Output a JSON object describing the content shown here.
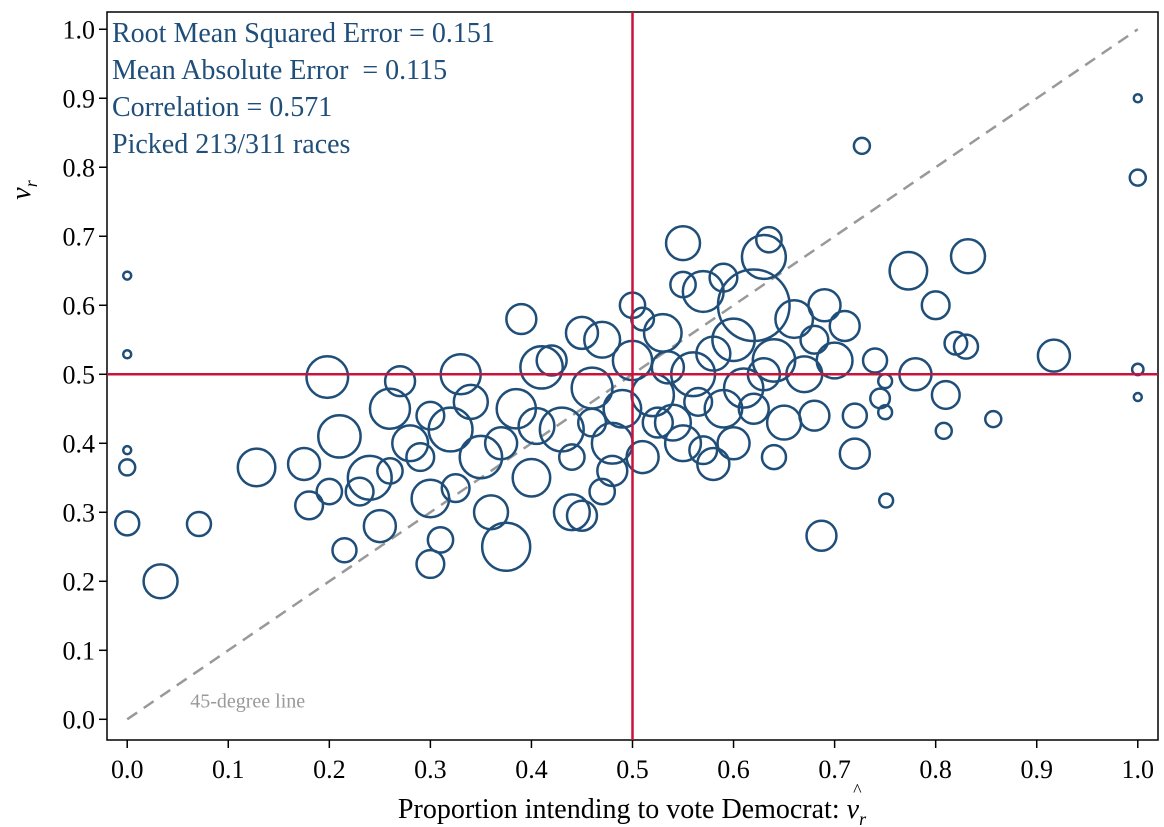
{
  "chart_data": {
    "type": "scatter",
    "annotations": [
      "Root Mean Squared Error = 0.151",
      "Mean Absolute Error  = 0.115",
      "Correlation = 0.571",
      "Picked 213/311 races"
    ],
    "xlabel": "Proportion intending to vote Democrat: ",
    "xlabel_symbol": "v",
    "xlabel_accent": "^",
    "xlabel_subscript": "r",
    "ylabel_symbol": "v",
    "ylabel_subscript": "r",
    "xlim": [
      -0.02,
      1.02
    ],
    "ylim": [
      -0.03,
      1.025
    ],
    "xticks": [
      {
        "value": 0,
        "label": "0.0"
      },
      0.1,
      0.2,
      0.3,
      0.4,
      0.5,
      0.6,
      0.7,
      0.8,
      0.9,
      {
        "value": 1,
        "label": "1.0"
      }
    ],
    "yticks": [
      {
        "value": 0,
        "label": "0.0"
      },
      0.1,
      0.2,
      0.3,
      0.4,
      0.5,
      0.6,
      0.7,
      0.8,
      0.9,
      {
        "value": 1,
        "label": "1.0"
      }
    ],
    "color": "#1f4e79",
    "hline": 0.5,
    "vline": 0.5,
    "ref_color": "#c8143c",
    "diagonal": {
      "x": [
        0,
        1
      ],
      "y": [
        0,
        1
      ],
      "label": "45-degree line",
      "color": "#999999"
    },
    "x": [
      0,
      0,
      0,
      0,
      0,
      0.071,
      0.033,
      1,
      1,
      1,
      1,
      0.727,
      0.917,
      0.857,
      0.751,
      0.687,
      0.808,
      0.75,
      0.75,
      0.832,
      0.773,
      0.8,
      0.82,
      0.83,
      0.81,
      0.78,
      0.72,
      0.745,
      0.74,
      0.128,
      0.198,
      0.175,
      0.18,
      0.215,
      0.21,
      0.24,
      0.25,
      0.26,
      0.28,
      0.3,
      0.3,
      0.31,
      0.32,
      0.33,
      0.35,
      0.36,
      0.375,
      0.385,
      0.39,
      0.4,
      0.41,
      0.43,
      0.44,
      0.45,
      0.46,
      0.47,
      0.48,
      0.49,
      0.5,
      0.5,
      0.51,
      0.52,
      0.53,
      0.54,
      0.55,
      0.56,
      0.57,
      0.58,
      0.59,
      0.6,
      0.61,
      0.62,
      0.63,
      0.635,
      0.64,
      0.65,
      0.66,
      0.67,
      0.68,
      0.69,
      0.7,
      0.71,
      0.72,
      0.6,
      0.55,
      0.45,
      0.42,
      0.29,
      0.27,
      0.34,
      0.37,
      0.23,
      0.2,
      0.325,
      0.405,
      0.48,
      0.525,
      0.58,
      0.535,
      0.565,
      0.62,
      0.64,
      0.68,
      0.44,
      0.51,
      0.59,
      0.55,
      0.46,
      0.3,
      0.26,
      0.47,
      0.57,
      0.63
    ],
    "y": [
      0.643,
      0.529,
      0.39,
      0.365,
      0.284,
      0.283,
      0.2,
      0.9,
      0.785,
      0.507,
      0.467,
      0.831,
      0.527,
      0.435,
      0.317,
      0.266,
      0.418,
      0.445,
      0.49,
      0.671,
      0.65,
      0.6,
      0.545,
      0.54,
      0.47,
      0.5,
      0.385,
      0.465,
      0.52,
      0.365,
      0.496,
      0.37,
      0.31,
      0.245,
      0.41,
      0.35,
      0.28,
      0.45,
      0.4,
      0.225,
      0.32,
      0.26,
      0.42,
      0.5,
      0.38,
      0.3,
      0.25,
      0.45,
      0.58,
      0.35,
      0.51,
      0.42,
      0.3,
      0.295,
      0.48,
      0.55,
      0.4,
      0.45,
      0.6,
      0.52,
      0.38,
      0.47,
      0.56,
      0.43,
      0.69,
      0.5,
      0.62,
      0.37,
      0.45,
      0.55,
      0.48,
      0.6,
      0.67,
      0.695,
      0.52,
      0.43,
      0.58,
      0.5,
      0.44,
      0.6,
      0.52,
      0.57,
      0.44,
      0.4,
      0.4,
      0.56,
      0.52,
      0.38,
      0.49,
      0.46,
      0.4,
      0.33,
      0.33,
      0.335,
      0.425,
      0.36,
      0.43,
      0.53,
      0.51,
      0.46,
      0.45,
      0.38,
      0.55,
      0.38,
      0.58,
      0.64,
      0.63,
      0.43,
      0.44,
      0.36,
      0.33,
      0.39,
      0.5
    ],
    "sizes": [
      1,
      1,
      1,
      4,
      9,
      9,
      18,
      1,
      4,
      2,
      1,
      4,
      16,
      4,
      3,
      14,
      4,
      3,
      3,
      18,
      22,
      12,
      8,
      9,
      12,
      16,
      14,
      6,
      9,
      22,
      27,
      16,
      12,
      9,
      28,
      30,
      16,
      25,
      20,
      12,
      22,
      10,
      30,
      25,
      28,
      18,
      36,
      24,
      14,
      22,
      28,
      30,
      20,
      14,
      26,
      20,
      26,
      22,
      10,
      24,
      16,
      28,
      22,
      20,
      18,
      30,
      26,
      16,
      22,
      28,
      24,
      80,
      30,
      10,
      28,
      18,
      22,
      20,
      14,
      16,
      20,
      14,
      9,
      16,
      20,
      16,
      14,
      12,
      14,
      18,
      16,
      12,
      10,
      12,
      20,
      14,
      14,
      18,
      16,
      12,
      14,
      9,
      12,
      10,
      8,
      12,
      10,
      12,
      12,
      10,
      10,
      12,
      16
    ]
  }
}
